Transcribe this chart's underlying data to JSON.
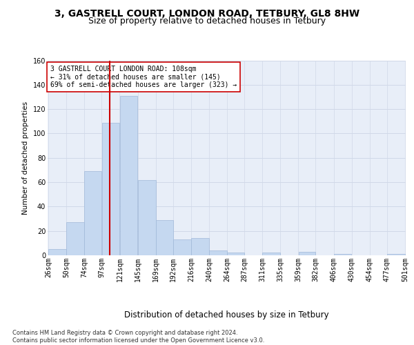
{
  "title1": "3, GASTRELL COURT, LONDON ROAD, TETBURY, GL8 8HW",
  "title2": "Size of property relative to detached houses in Tetbury",
  "xlabel": "Distribution of detached houses by size in Tetbury",
  "ylabel": "Number of detached properties",
  "footnote": "Contains HM Land Registry data © Crown copyright and database right 2024.\nContains public sector information licensed under the Open Government Licence v3.0.",
  "bin_edges": [
    26,
    50,
    74,
    97,
    121,
    145,
    169,
    192,
    216,
    240,
    264,
    287,
    311,
    335,
    359,
    382,
    406,
    430,
    454,
    477,
    501
  ],
  "bar_heights": [
    5,
    27,
    69,
    109,
    131,
    62,
    29,
    13,
    14,
    4,
    2,
    0,
    2,
    0,
    3,
    0,
    1,
    0,
    0,
    1
  ],
  "bar_color": "#c5d8f0",
  "bar_edge_color": "#a0b8d8",
  "property_size": 108,
  "vline_color": "#cc0000",
  "annotation_text": "3 GASTRELL COURT LONDON ROAD: 108sqm\n← 31% of detached houses are smaller (145)\n69% of semi-detached houses are larger (323) →",
  "annotation_box_color": "#ffffff",
  "annotation_box_edge": "#cc0000",
  "ylim": [
    0,
    160
  ],
  "yticks": [
    0,
    20,
    40,
    60,
    80,
    100,
    120,
    140,
    160
  ],
  "grid_color": "#d0d8e8",
  "fig_bg_color": "#ffffff",
  "plot_bg_color": "#e8eef8",
  "title1_fontsize": 10,
  "title2_fontsize": 9,
  "xlabel_fontsize": 8.5,
  "ylabel_fontsize": 7.5,
  "tick_fontsize": 7,
  "annotation_fontsize": 7,
  "footnote_fontsize": 6
}
